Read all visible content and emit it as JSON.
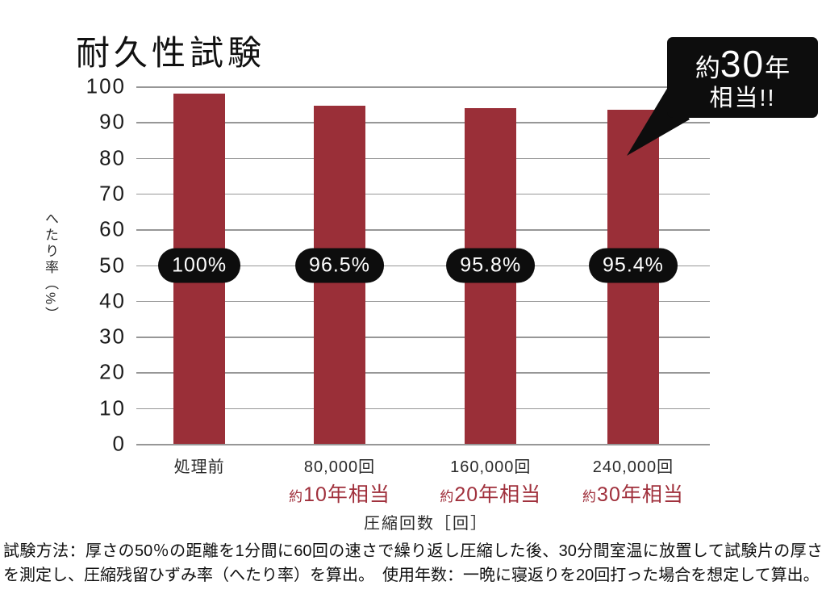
{
  "page": {
    "footnote": "試験方法：厚さの50％の距離を1分間に60回の速さで繰り返し圧縮した後、30分間室温に放置して試験片の厚さを測定し、圧縮残留ひずみ率（へたり率）を算出。　使用年数：一晩に寝返りを20回打った場合を想定して算出。"
  },
  "chart_data": {
    "type": "bar",
    "title": "耐久性試験",
    "categories": [
      "処理前",
      "80,000回",
      "160,000回",
      "240,000回"
    ],
    "values": [
      100,
      96.5,
      95.8,
      95.4
    ],
    "value_labels": [
      "100%",
      "96.5%",
      "95.8%",
      "95.4%"
    ],
    "category_sublabels": [
      null,
      "約10年相当",
      "約20年相当",
      "約30年相当"
    ],
    "xlabel": "圧縮回数［回］",
    "ylabel": "へたり率（%）",
    "ylim": [
      0,
      100
    ],
    "yticks": [
      100,
      90,
      80,
      70,
      60,
      50,
      40,
      30,
      20,
      10,
      0
    ],
    "grid": true,
    "legend": false,
    "bar_color": "#9a2f38",
    "pill_color": "#0d0d0d",
    "sublabel_color": "#a0303c",
    "callout": {
      "prefix": "約",
      "number": "30",
      "suffix": "年",
      "line2": "相当!!"
    }
  }
}
